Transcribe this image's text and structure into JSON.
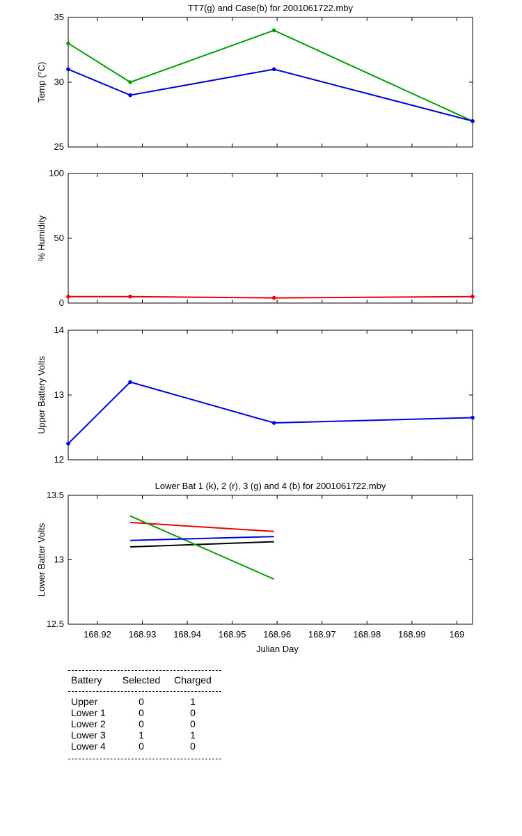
{
  "chart_data": [
    {
      "id": "temp",
      "type": "line",
      "title": "TT7(g) and Case(b) for 2001061722.mby",
      "xlabel": "",
      "ylabel": "Temp  (°C)",
      "xlim": [
        168.9135,
        169.0035
      ],
      "ylim": [
        25,
        35
      ],
      "yticks": [
        25,
        30,
        35
      ],
      "show_xtick_labels": false,
      "grid": false,
      "series": [
        {
          "color": "#00a000",
          "x": [
            168.9135,
            168.9273,
            168.9593,
            169.0035
          ],
          "y": [
            33,
            30,
            34,
            27
          ]
        },
        {
          "color": "#0000dd",
          "x": [
            168.9135,
            168.9273,
            168.9593,
            169.0035
          ],
          "y": [
            31,
            29,
            31,
            27
          ]
        }
      ]
    },
    {
      "id": "humidity",
      "type": "line",
      "title": "",
      "xlabel": "",
      "ylabel": "% Humidity",
      "xlim": [
        168.9135,
        169.0035
      ],
      "ylim": [
        0,
        100
      ],
      "yticks": [
        0,
        50,
        100
      ],
      "show_xtick_labels": false,
      "grid": false,
      "series": [
        {
          "color": "#ee0000",
          "x": [
            168.9135,
            168.9273,
            168.9593,
            169.0035
          ],
          "y": [
            5,
            5,
            4,
            5
          ]
        }
      ]
    },
    {
      "id": "upper",
      "type": "line",
      "title": "",
      "xlabel": "",
      "ylabel": "Upper Battery Volts",
      "xlim": [
        168.9135,
        169.0035
      ],
      "ylim": [
        12,
        14
      ],
      "yticks": [
        12,
        13,
        14
      ],
      "show_xtick_labels": false,
      "grid": false,
      "series": [
        {
          "color": "#0000dd",
          "x": [
            168.9135,
            168.9273,
            168.9593,
            169.0035
          ],
          "y": [
            12.25,
            13.2,
            12.57,
            12.65
          ]
        }
      ]
    },
    {
      "id": "lower",
      "type": "line",
      "title": "Lower Bat 1 (k), 2 (r), 3 (g) and 4 (b) for 2001061722.mby",
      "xlabel": "Julian Day",
      "ylabel": "Lower Batter Volts",
      "xlim": [
        168.9135,
        169.0035
      ],
      "ylim": [
        12.5,
        13.5
      ],
      "yticks": [
        12.5,
        13,
        13.5
      ],
      "show_xtick_labels": true,
      "grid": false,
      "series": [
        {
          "color": "#000000",
          "x": [
            168.9273,
            168.9593
          ],
          "y": [
            13.1,
            13.14
          ]
        },
        {
          "color": "#ee0000",
          "x": [
            168.9273,
            168.9593
          ],
          "y": [
            13.29,
            13.22
          ]
        },
        {
          "color": "#00a000",
          "x": [
            168.9273,
            168.9593
          ],
          "y": [
            13.34,
            12.85
          ]
        },
        {
          "color": "#0000dd",
          "x": [
            168.9273,
            168.9593
          ],
          "y": [
            13.15,
            13.18
          ]
        }
      ]
    }
  ],
  "xticks": [
    168.92,
    168.93,
    168.94,
    168.95,
    168.96,
    168.97,
    168.98,
    168.99,
    169
  ],
  "xtick_labels": [
    "168.92",
    "168.93",
    "168.94",
    "168.95",
    "168.96",
    "168.97",
    "168.98",
    "168.99",
    "169"
  ],
  "status_table": {
    "headers": [
      "Battery",
      "Selected",
      "Charged"
    ],
    "rows": [
      {
        "battery": "Upper",
        "selected": "0",
        "charged": "1"
      },
      {
        "battery": "Lower 1",
        "selected": "0",
        "charged": "0"
      },
      {
        "battery": "Lower 2",
        "selected": "0",
        "charged": "0"
      },
      {
        "battery": "Lower 3",
        "selected": "1",
        "charged": "1"
      },
      {
        "battery": "Lower 4",
        "selected": "0",
        "charged": "0"
      }
    ]
  }
}
